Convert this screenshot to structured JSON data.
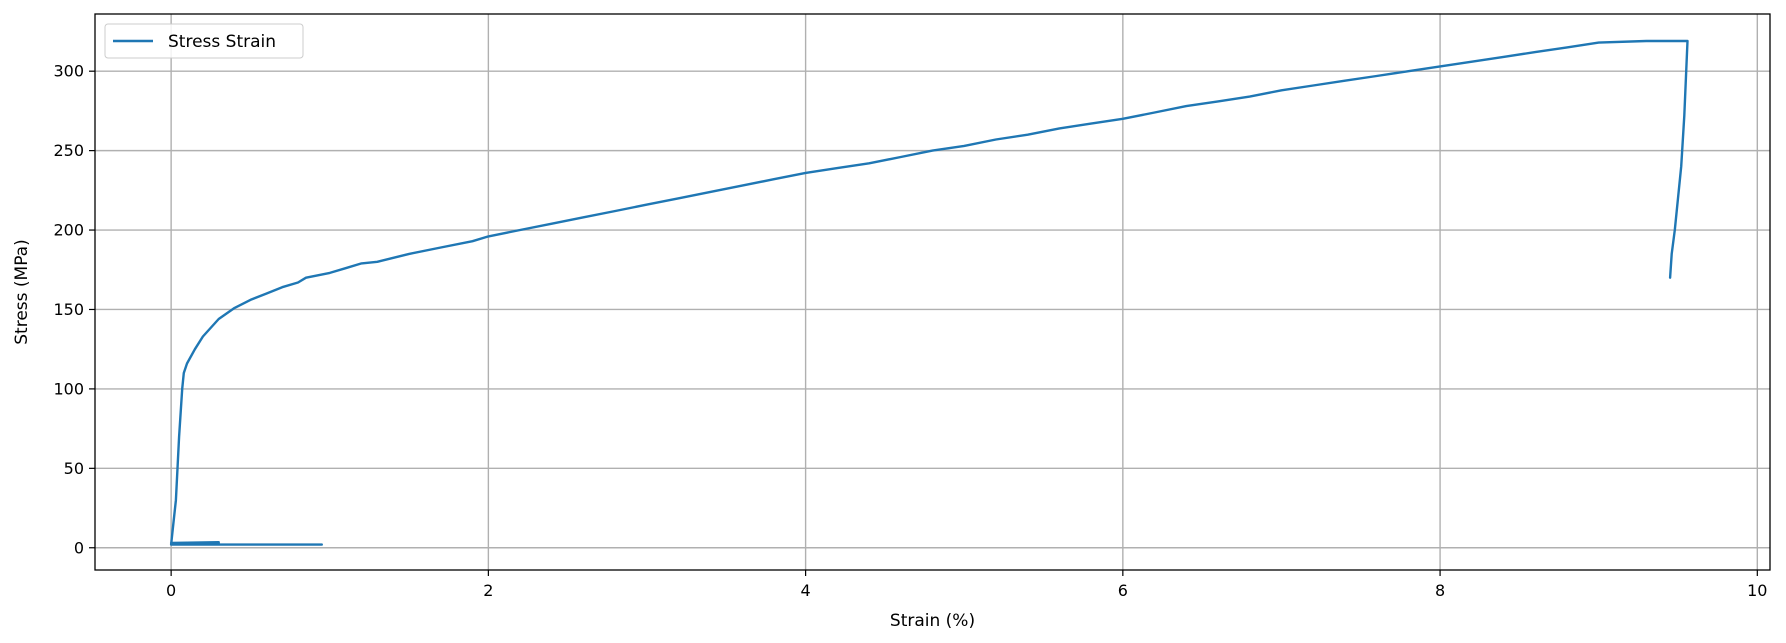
{
  "chart_data": {
    "type": "line",
    "title": "",
    "xlabel": "Strain (%)",
    "ylabel": "Stress (MPa)",
    "xlim": [
      -0.48,
      10.08
    ],
    "ylim": [
      -14,
      336
    ],
    "x_ticks": [
      0,
      2,
      4,
      6,
      8,
      10
    ],
    "y_ticks": [
      0,
      50,
      100,
      150,
      200,
      250,
      300
    ],
    "x_tick_labels": [
      "0",
      "2",
      "4",
      "6",
      "8",
      "10"
    ],
    "y_tick_labels": [
      "0",
      "50",
      "100",
      "150",
      "200",
      "250",
      "300"
    ],
    "grid": true,
    "legend_position": "top-left",
    "series": [
      {
        "name": "Stress Strain",
        "color": "#1f77b4",
        "x": [
          0.0,
          0.3,
          0.3,
          0.0,
          0.95,
          0.0,
          0.03,
          0.05,
          0.07,
          0.08,
          0.1,
          0.15,
          0.2,
          0.3,
          0.4,
          0.5,
          0.6,
          0.7,
          0.8,
          0.85,
          1.0,
          1.1,
          1.2,
          1.3,
          1.5,
          1.7,
          1.9,
          2.0,
          2.2,
          2.4,
          2.6,
          2.8,
          3.0,
          3.2,
          3.4,
          3.6,
          3.8,
          4.0,
          4.2,
          4.4,
          4.6,
          4.8,
          5.0,
          5.2,
          5.4,
          5.6,
          5.8,
          6.0,
          6.2,
          6.4,
          6.6,
          6.8,
          7.0,
          7.2,
          7.4,
          7.6,
          7.8,
          8.0,
          8.2,
          8.4,
          8.6,
          8.8,
          9.0,
          9.3,
          9.56,
          9.54,
          9.52,
          9.5,
          9.48,
          9.46,
          9.45
        ],
        "y": [
          3,
          3.5,
          2,
          2,
          2,
          2,
          30,
          70,
          100,
          110,
          116,
          125,
          133,
          144,
          151,
          156,
          160,
          164,
          167,
          170,
          173,
          176,
          179,
          180,
          185,
          189,
          193,
          196,
          200,
          204,
          208,
          212,
          216,
          220,
          224,
          228,
          232,
          236,
          239,
          242,
          246,
          250,
          253,
          257,
          260,
          264,
          267,
          270,
          274,
          278,
          281,
          284,
          288,
          291,
          294,
          297,
          300,
          303,
          306,
          309,
          312,
          315,
          318,
          319,
          319,
          272,
          240,
          220,
          200,
          185,
          170
        ]
      }
    ]
  }
}
